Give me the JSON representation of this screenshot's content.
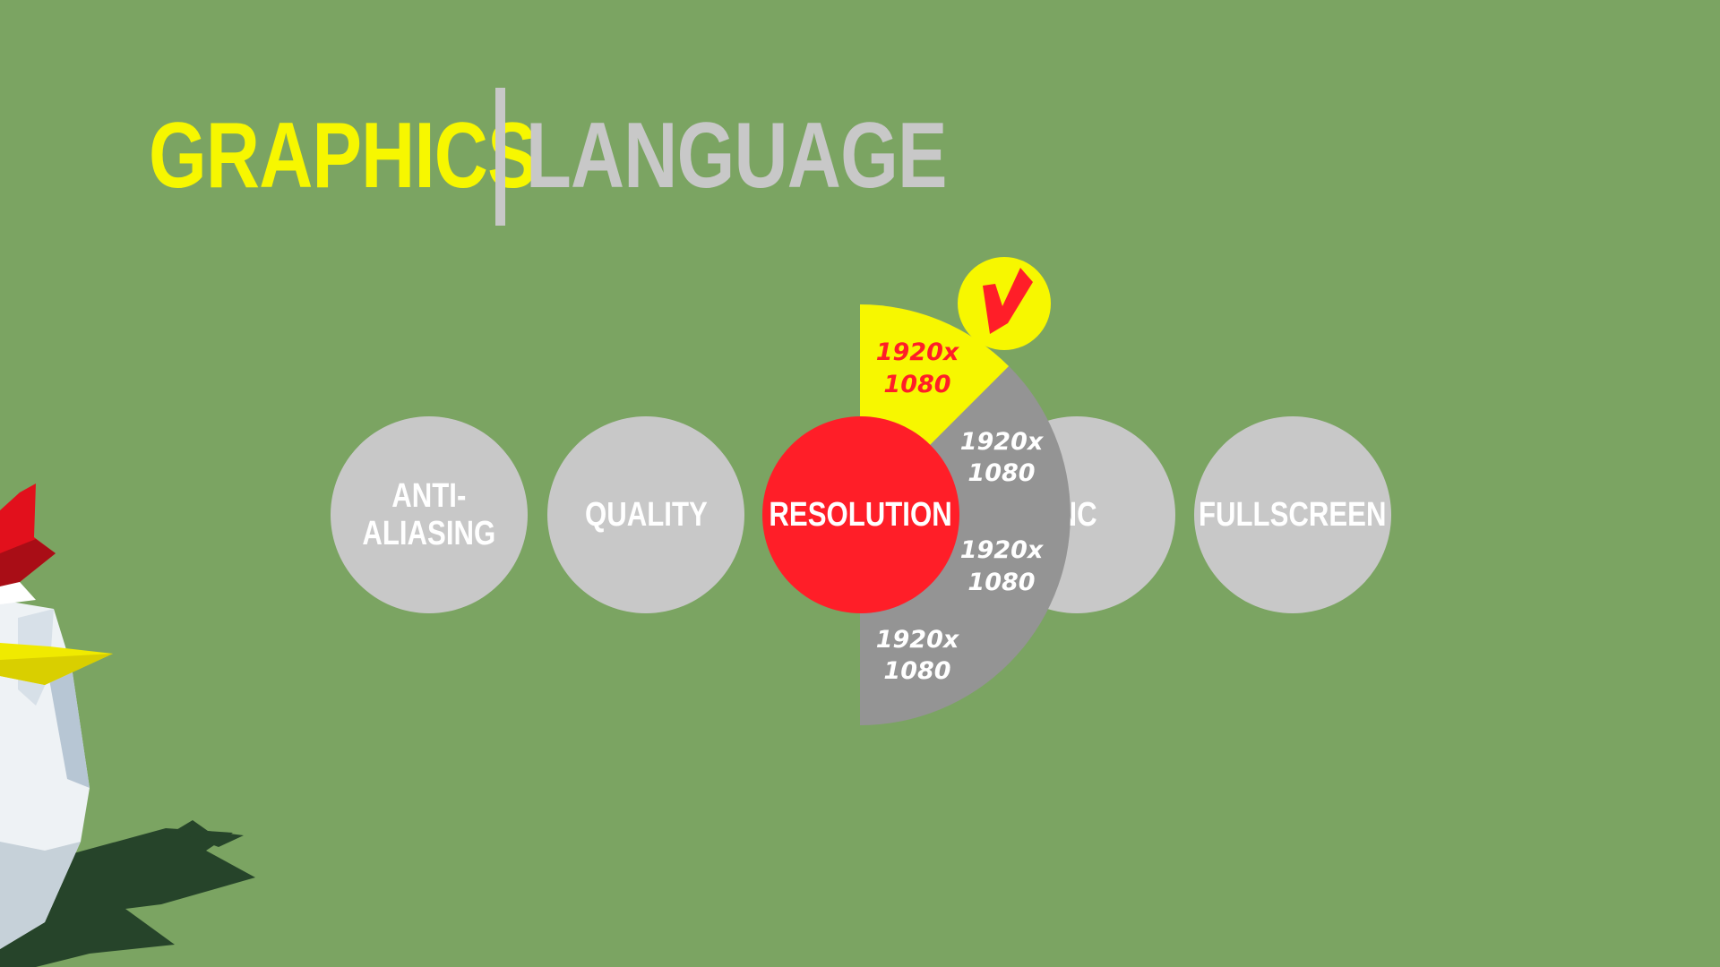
{
  "colors": {
    "background": "#7ba462",
    "tab_active": "#f7f700",
    "tab_inactive": "#c8c8c8",
    "divider": "#c8c8c8",
    "option_circle": "#c8c8c8",
    "option_selected": "#ff1e28",
    "option_text": "#ffffff",
    "fan_gray": "#949494",
    "fan_selected": "#f7f700",
    "fan_selected_text": "#ff1e28",
    "badge_mark": "#ff1e28"
  },
  "tabs": [
    {
      "label": "GRAPHICS",
      "active": true
    },
    {
      "label": "LANGUAGE",
      "active": false
    }
  ],
  "options": [
    {
      "label": "ANTI-\nALIASING",
      "selected": false
    },
    {
      "label": "QUALITY",
      "selected": false
    },
    {
      "label": "RESOLUTION",
      "selected": true
    },
    {
      "label": "SYNC",
      "selected": false
    },
    {
      "label": "FULLSCREEN",
      "selected": false
    }
  ],
  "resolution_choices": [
    {
      "line1": "1920x",
      "line2": "1080",
      "selected": true
    },
    {
      "line1": "1920x",
      "line2": "1080",
      "selected": false
    },
    {
      "line1": "1920x",
      "line2": "1080",
      "selected": false
    },
    {
      "line1": "1920x",
      "line2": "1080",
      "selected": false
    }
  ],
  "badge_icon": "checkmark-icon",
  "mascot": "chicken"
}
